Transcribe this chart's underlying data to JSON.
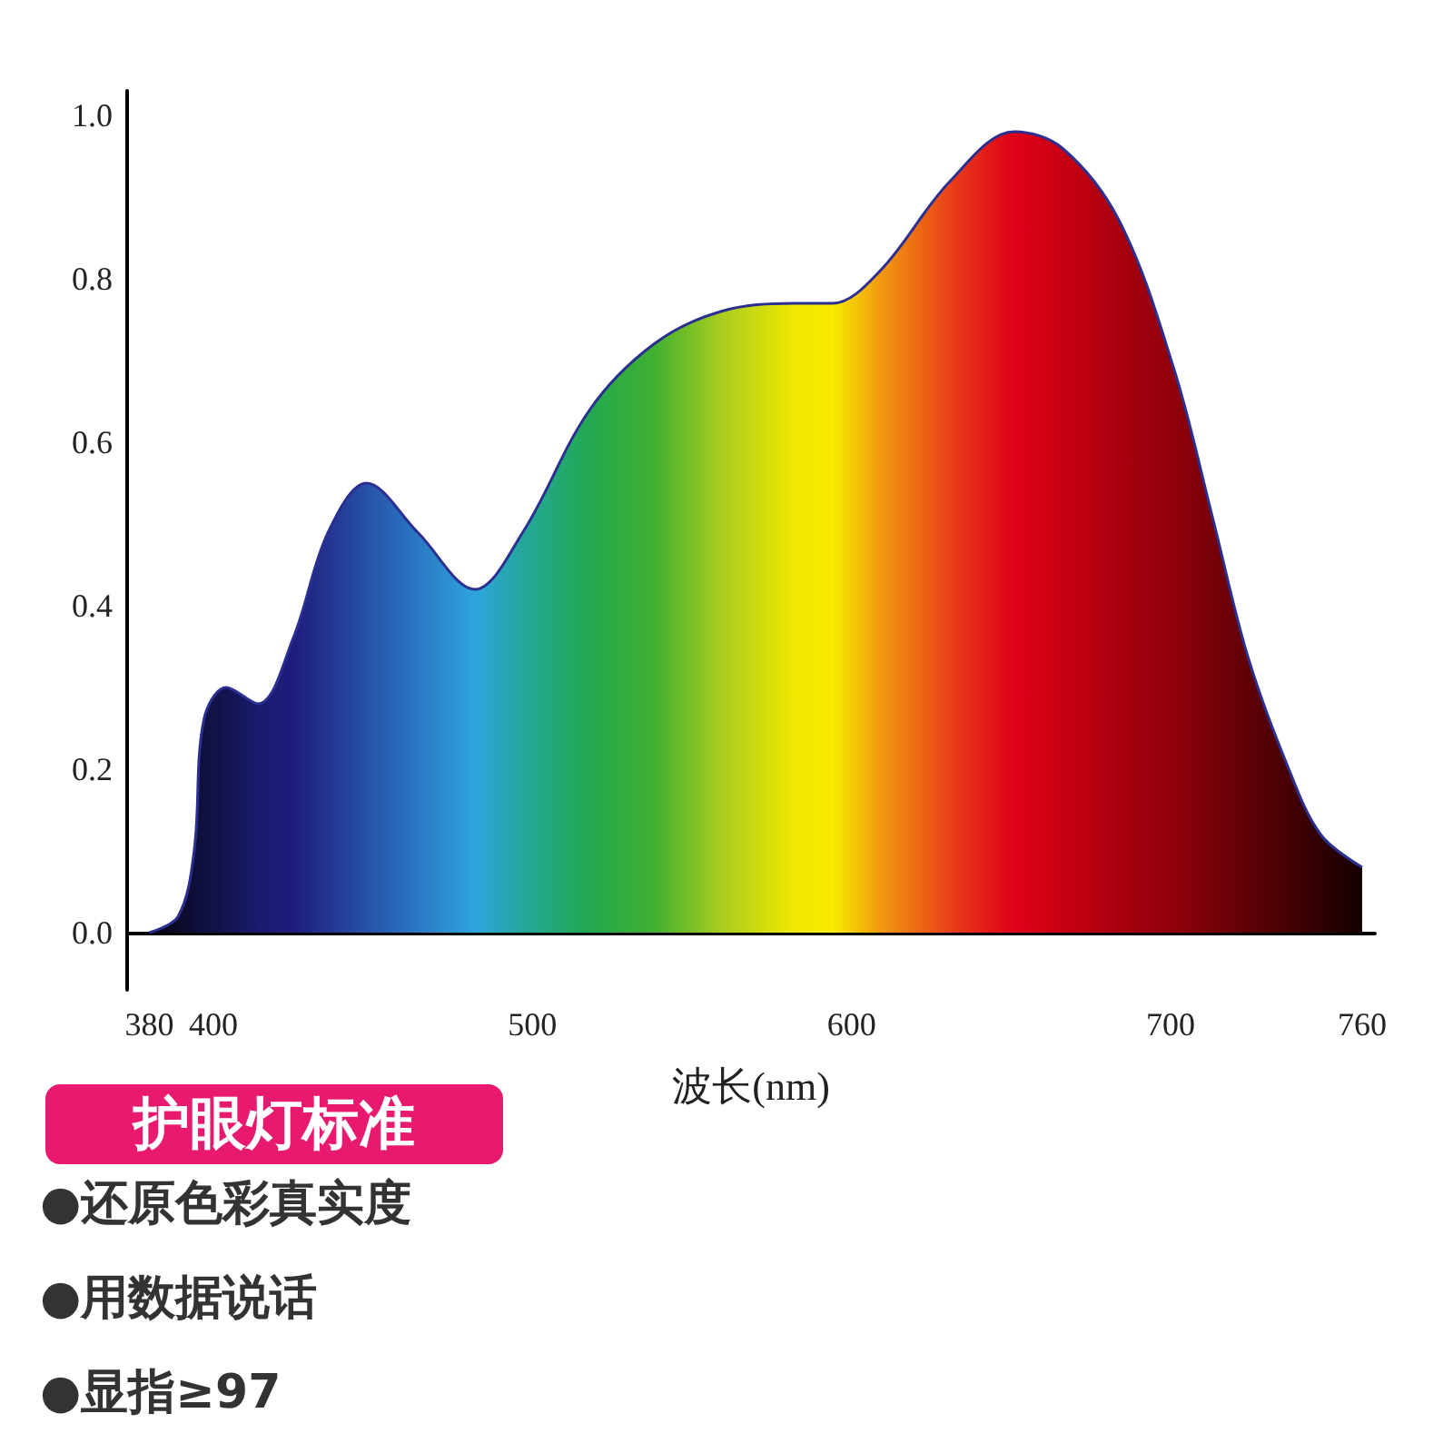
{
  "chart_data": {
    "type": "area",
    "xlabel": "波长(nm)",
    "x": [
      380,
      389,
      394,
      397,
      404,
      414,
      425,
      436,
      448,
      464,
      482,
      497,
      518,
      538,
      559,
      582,
      594,
      609,
      631,
      651,
      666,
      684,
      701,
      713,
      724,
      736,
      747,
      760
    ],
    "series": [
      {
        "color": "#2b2f8f",
        "values": [
          0,
          0.02,
          0.1,
          0.26,
          0.3,
          0.28,
          0.36,
          0.49,
          0.55,
          0.49,
          0.42,
          0.49,
          0.64,
          0.72,
          0.76,
          0.77,
          0.77,
          0.81,
          0.92,
          0.98,
          0.96,
          0.87,
          0.69,
          0.51,
          0.34,
          0.21,
          0.12,
          0.08
        ],
        "colors": [
          "#05050f",
          "#0a0a28",
          "#0e0e38",
          "#101040",
          "#141450",
          "#1a1a6e",
          "#1e1c7c",
          "#233590",
          "#2850a8",
          "#2a78c4",
          "#2ea4de",
          "#24a79a",
          "#22a850",
          "#40b030",
          "#a8cc20",
          "#f0e800",
          "#f8ec00",
          "#f29a10",
          "#e84018",
          "#e0001a",
          "#c80012",
          "#a8000e",
          "#90000c",
          "#780008",
          "#600006",
          "#480004",
          "#300002",
          "#150000"
        ]
      }
    ],
    "xlim": [
      373,
      764
    ],
    "xticks": [
      380,
      400,
      500,
      600,
      700,
      760
    ],
    "ylim": [
      -0.07,
      1.03
    ],
    "yticks": [
      {
        "value": 0,
        "label": "0.0"
      },
      0.2,
      0.4,
      0.6,
      0.8,
      {
        "value": 1,
        "label": "1.0"
      }
    ],
    "grid": false,
    "annotations": [
      "护眼灯标准",
      "●还原色彩真实度",
      "●用数据说话",
      "●显指≥97"
    ]
  }
}
